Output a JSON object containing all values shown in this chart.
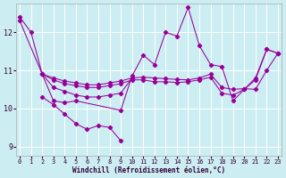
{
  "xlabel": "Windchill (Refroidissement éolien,°C)",
  "background_color": "#cceef2",
  "line_color": "#990099",
  "grid_color": "#ffffff",
  "xlim": [
    -0.3,
    23.3
  ],
  "ylim": [
    8.75,
    12.75
  ],
  "yticks": [
    9,
    10,
    11,
    12
  ],
  "xticks": [
    0,
    1,
    2,
    3,
    4,
    5,
    6,
    7,
    8,
    9,
    10,
    11,
    12,
    13,
    14,
    15,
    16,
    17,
    18,
    19,
    20,
    21,
    22,
    23
  ],
  "series": [
    {
      "x": [
        0,
        1,
        2,
        3,
        4,
        5,
        6,
        7,
        8,
        9,
        10
      ],
      "y": [
        12.4,
        12.0,
        10.9,
        10.55,
        10.45,
        10.35,
        10.3,
        10.3,
        10.35,
        10.4,
        10.8
      ]
    },
    {
      "x": [
        2,
        3,
        4,
        5,
        6,
        7,
        8,
        9
      ],
      "y": [
        10.3,
        10.1,
        9.85,
        9.6,
        9.45,
        9.55,
        9.5,
        9.15
      ]
    },
    {
      "x": [
        0,
        2,
        3,
        4,
        5,
        9,
        10,
        11,
        12,
        13,
        14,
        15,
        16,
        17,
        18,
        19,
        20,
        21,
        22,
        23
      ],
      "y": [
        12.3,
        10.9,
        10.2,
        10.15,
        10.2,
        9.95,
        10.85,
        11.4,
        11.15,
        12.0,
        11.9,
        12.65,
        11.65,
        11.15,
        11.1,
        10.2,
        10.5,
        10.75,
        11.55,
        11.45
      ]
    },
    {
      "x": [
        2,
        3,
        4,
        5,
        6,
        7,
        8,
        9,
        10,
        11,
        12,
        13,
        14,
        15,
        16,
        17,
        18,
        19,
        20,
        21,
        22,
        23
      ],
      "y": [
        10.9,
        10.75,
        10.65,
        10.6,
        10.55,
        10.55,
        10.6,
        10.65,
        10.75,
        10.75,
        10.7,
        10.7,
        10.68,
        10.7,
        10.75,
        10.82,
        10.4,
        10.35,
        10.5,
        10.8,
        11.55,
        11.45
      ]
    },
    {
      "x": [
        2,
        3,
        4,
        5,
        6,
        7,
        8,
        9,
        10,
        11,
        12,
        13,
        14,
        15,
        16,
        17,
        18,
        19,
        20,
        21,
        22,
        23
      ],
      "y": [
        10.9,
        10.8,
        10.72,
        10.67,
        10.62,
        10.62,
        10.67,
        10.72,
        10.8,
        10.82,
        10.8,
        10.78,
        10.76,
        10.75,
        10.8,
        10.9,
        10.55,
        10.5,
        10.52,
        10.5,
        11.0,
        11.45
      ]
    }
  ]
}
